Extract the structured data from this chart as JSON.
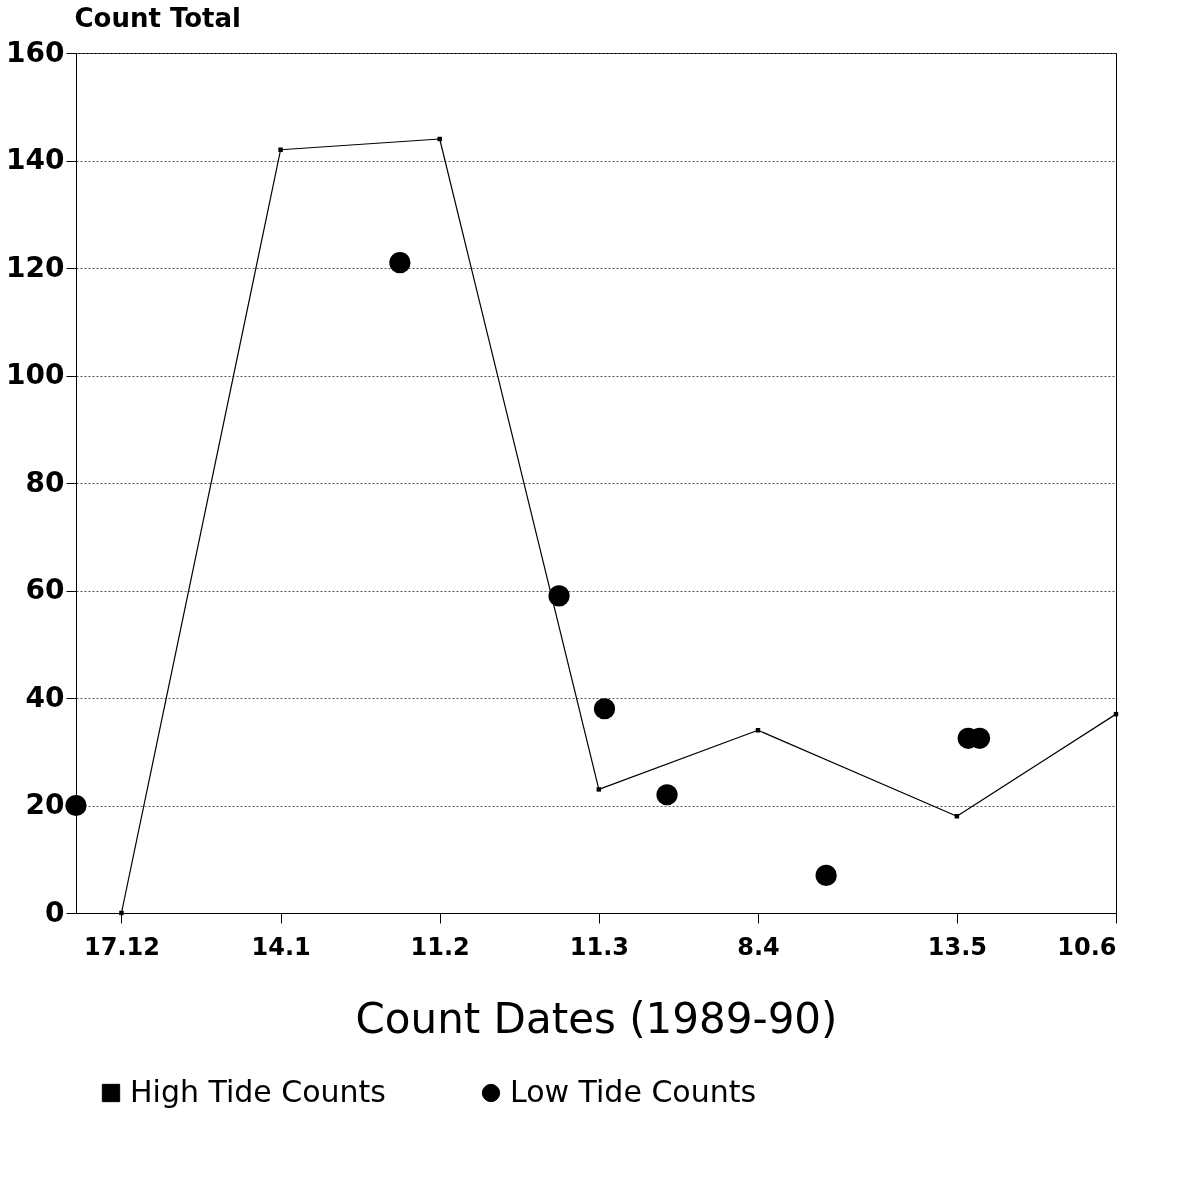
{
  "chart_data": {
    "type": "line",
    "xlabel": "Count Dates (1989-90)",
    "ylabel": "Count Total",
    "xlim": [
      "1989-12-09",
      "1990-06-10"
    ],
    "xticks": [
      {
        "value": "1989-12-17",
        "label": "17.12"
      },
      {
        "value": "1990-01-14",
        "label": "14.1"
      },
      {
        "value": "1990-02-11",
        "label": "11.2"
      },
      {
        "value": "1990-03-11",
        "label": "11.3"
      },
      {
        "value": "1990-04-08",
        "label": "8.4"
      },
      {
        "value": "1990-05-13",
        "label": "13.5"
      },
      {
        "value": "1990-06-10",
        "label": "10.6"
      }
    ],
    "ylim": [
      0,
      160
    ],
    "yticks": [
      0,
      20,
      40,
      60,
      80,
      100,
      120,
      140,
      160
    ],
    "grid": "y",
    "legend": "bottom",
    "series": [
      {
        "name": "High Tide Counts",
        "marker": "square",
        "color": "#000000",
        "x": [
          "1989-12-17",
          "1990-01-14",
          "1990-02-11",
          "1990-03-11",
          "1990-04-08",
          "1990-05-13",
          "1990-06-10"
        ],
        "values": [
          0,
          142,
          144,
          23,
          34,
          18,
          37
        ]
      },
      {
        "name": "Low Tide Counts",
        "type": "scatter",
        "marker": "circle",
        "color": "#000000",
        "x": [
          "1989-12-09",
          "1990-02-04",
          "1990-03-04",
          "1990-03-12",
          "1990-03-23",
          "1990-04-20",
          "1990-05-15",
          "1990-05-17"
        ],
        "values": [
          20,
          121,
          59,
          38,
          22,
          7,
          32.5,
          32.5
        ]
      }
    ]
  }
}
